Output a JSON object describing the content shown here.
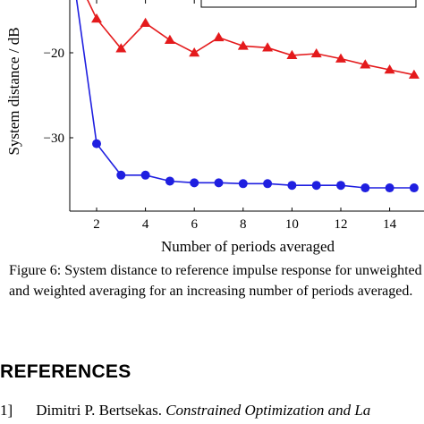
{
  "chart_data": {
    "type": "line",
    "title": "",
    "xlabel": "Number of periods averaged",
    "ylabel": "System distance / dB",
    "xlim": [
      1,
      15.2
    ],
    "ylim": [
      -38.5,
      -10
    ],
    "xticks": [
      2,
      4,
      6,
      8,
      10,
      12,
      14
    ],
    "yticks": [
      -20,
      -30
    ],
    "ytick_labels": [
      "−20",
      "−30"
    ],
    "grid": false,
    "legend": "top-right (partially visible, entries not readable)",
    "series": [
      {
        "color": "#e41a1c",
        "marker": "triangle",
        "x": [
          1,
          2,
          3,
          4,
          5,
          6,
          7,
          8,
          9,
          10,
          11,
          12,
          13,
          14,
          15
        ],
        "values": [
          -10,
          -16.0,
          -19.5,
          -16.5,
          -18.5,
          -20.0,
          -18.2,
          -19.2,
          -19.4,
          -20.3,
          -20.1,
          -20.7,
          -21.4,
          -22.0,
          -22.6
        ]
      },
      {
        "color": "#1f1fe0",
        "marker": "circle",
        "x": [
          1,
          2,
          3,
          4,
          5,
          6,
          7,
          8,
          9,
          10,
          11,
          12,
          13,
          14,
          15
        ],
        "values": [
          -10,
          -30.7,
          -34.4,
          -34.4,
          -35.1,
          -35.3,
          -35.3,
          -35.4,
          -35.4,
          -35.6,
          -35.6,
          -35.6,
          -35.9,
          -35.9,
          -35.9
        ]
      }
    ]
  },
  "caption": "Figure 6: System distance to reference impulse response for unweighted and weighted averaging for an increasing number of periods averaged.",
  "references_heading": "REFERENCES",
  "reference": {
    "number": "1]",
    "authors": "Dimitri P. Bertsekas.",
    "title": "Constrained Optimization and La"
  }
}
